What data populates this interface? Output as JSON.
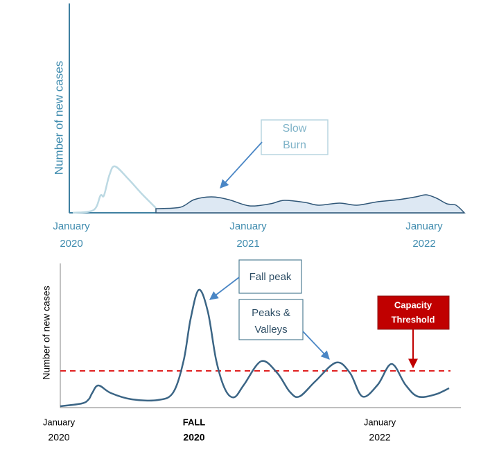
{
  "top_panel": {
    "y_axis_label": "Number of new cases",
    "x_labels": [
      [
        "January",
        "2020"
      ],
      [
        "January",
        "2021"
      ],
      [
        "January",
        "2022"
      ]
    ],
    "callout": [
      "Slow",
      "Burn"
    ]
  },
  "bottom_panel": {
    "y_axis_label": "Number of new cases",
    "x_labels": [
      [
        "January",
        "2020"
      ],
      [
        "FALL",
        "2020"
      ],
      [
        "January",
        "2022"
      ]
    ],
    "callouts": {
      "fall_peak": "Fall peak",
      "peaks_valleys": [
        "Peaks &",
        "Valleys"
      ],
      "capacity": [
        "Capacity",
        "Threshold"
      ]
    }
  }
}
